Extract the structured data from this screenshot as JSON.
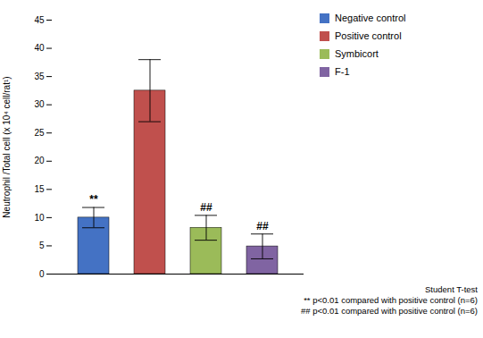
{
  "chart_data": {
    "type": "bar",
    "categories": [
      "Negative control",
      "Positive control",
      "Symbicort",
      "F-1"
    ],
    "values": [
      10.0,
      32.5,
      8.2,
      4.9
    ],
    "errors": [
      1.8,
      5.5,
      2.2,
      2.2
    ],
    "colors": [
      "#4472C4",
      "#C0504D",
      "#9BBB59",
      "#8064A2"
    ],
    "ylim": [
      0,
      45
    ],
    "yticks": [
      0,
      5,
      10,
      15,
      20,
      25,
      30,
      35,
      40,
      45
    ],
    "ylabel": "Neutrophil /Total cell (x 10⁴ cell/rat¹)",
    "annotations": [
      "**",
      "",
      "##",
      "##"
    ],
    "footnotes": [
      "Student T-test",
      "** p<0.01 compared with positive control (n=6)",
      "## p<0.01 compared with positive control (n=6)"
    ],
    "legend": "upper right",
    "tick_labels": "y",
    "grid": false
  }
}
